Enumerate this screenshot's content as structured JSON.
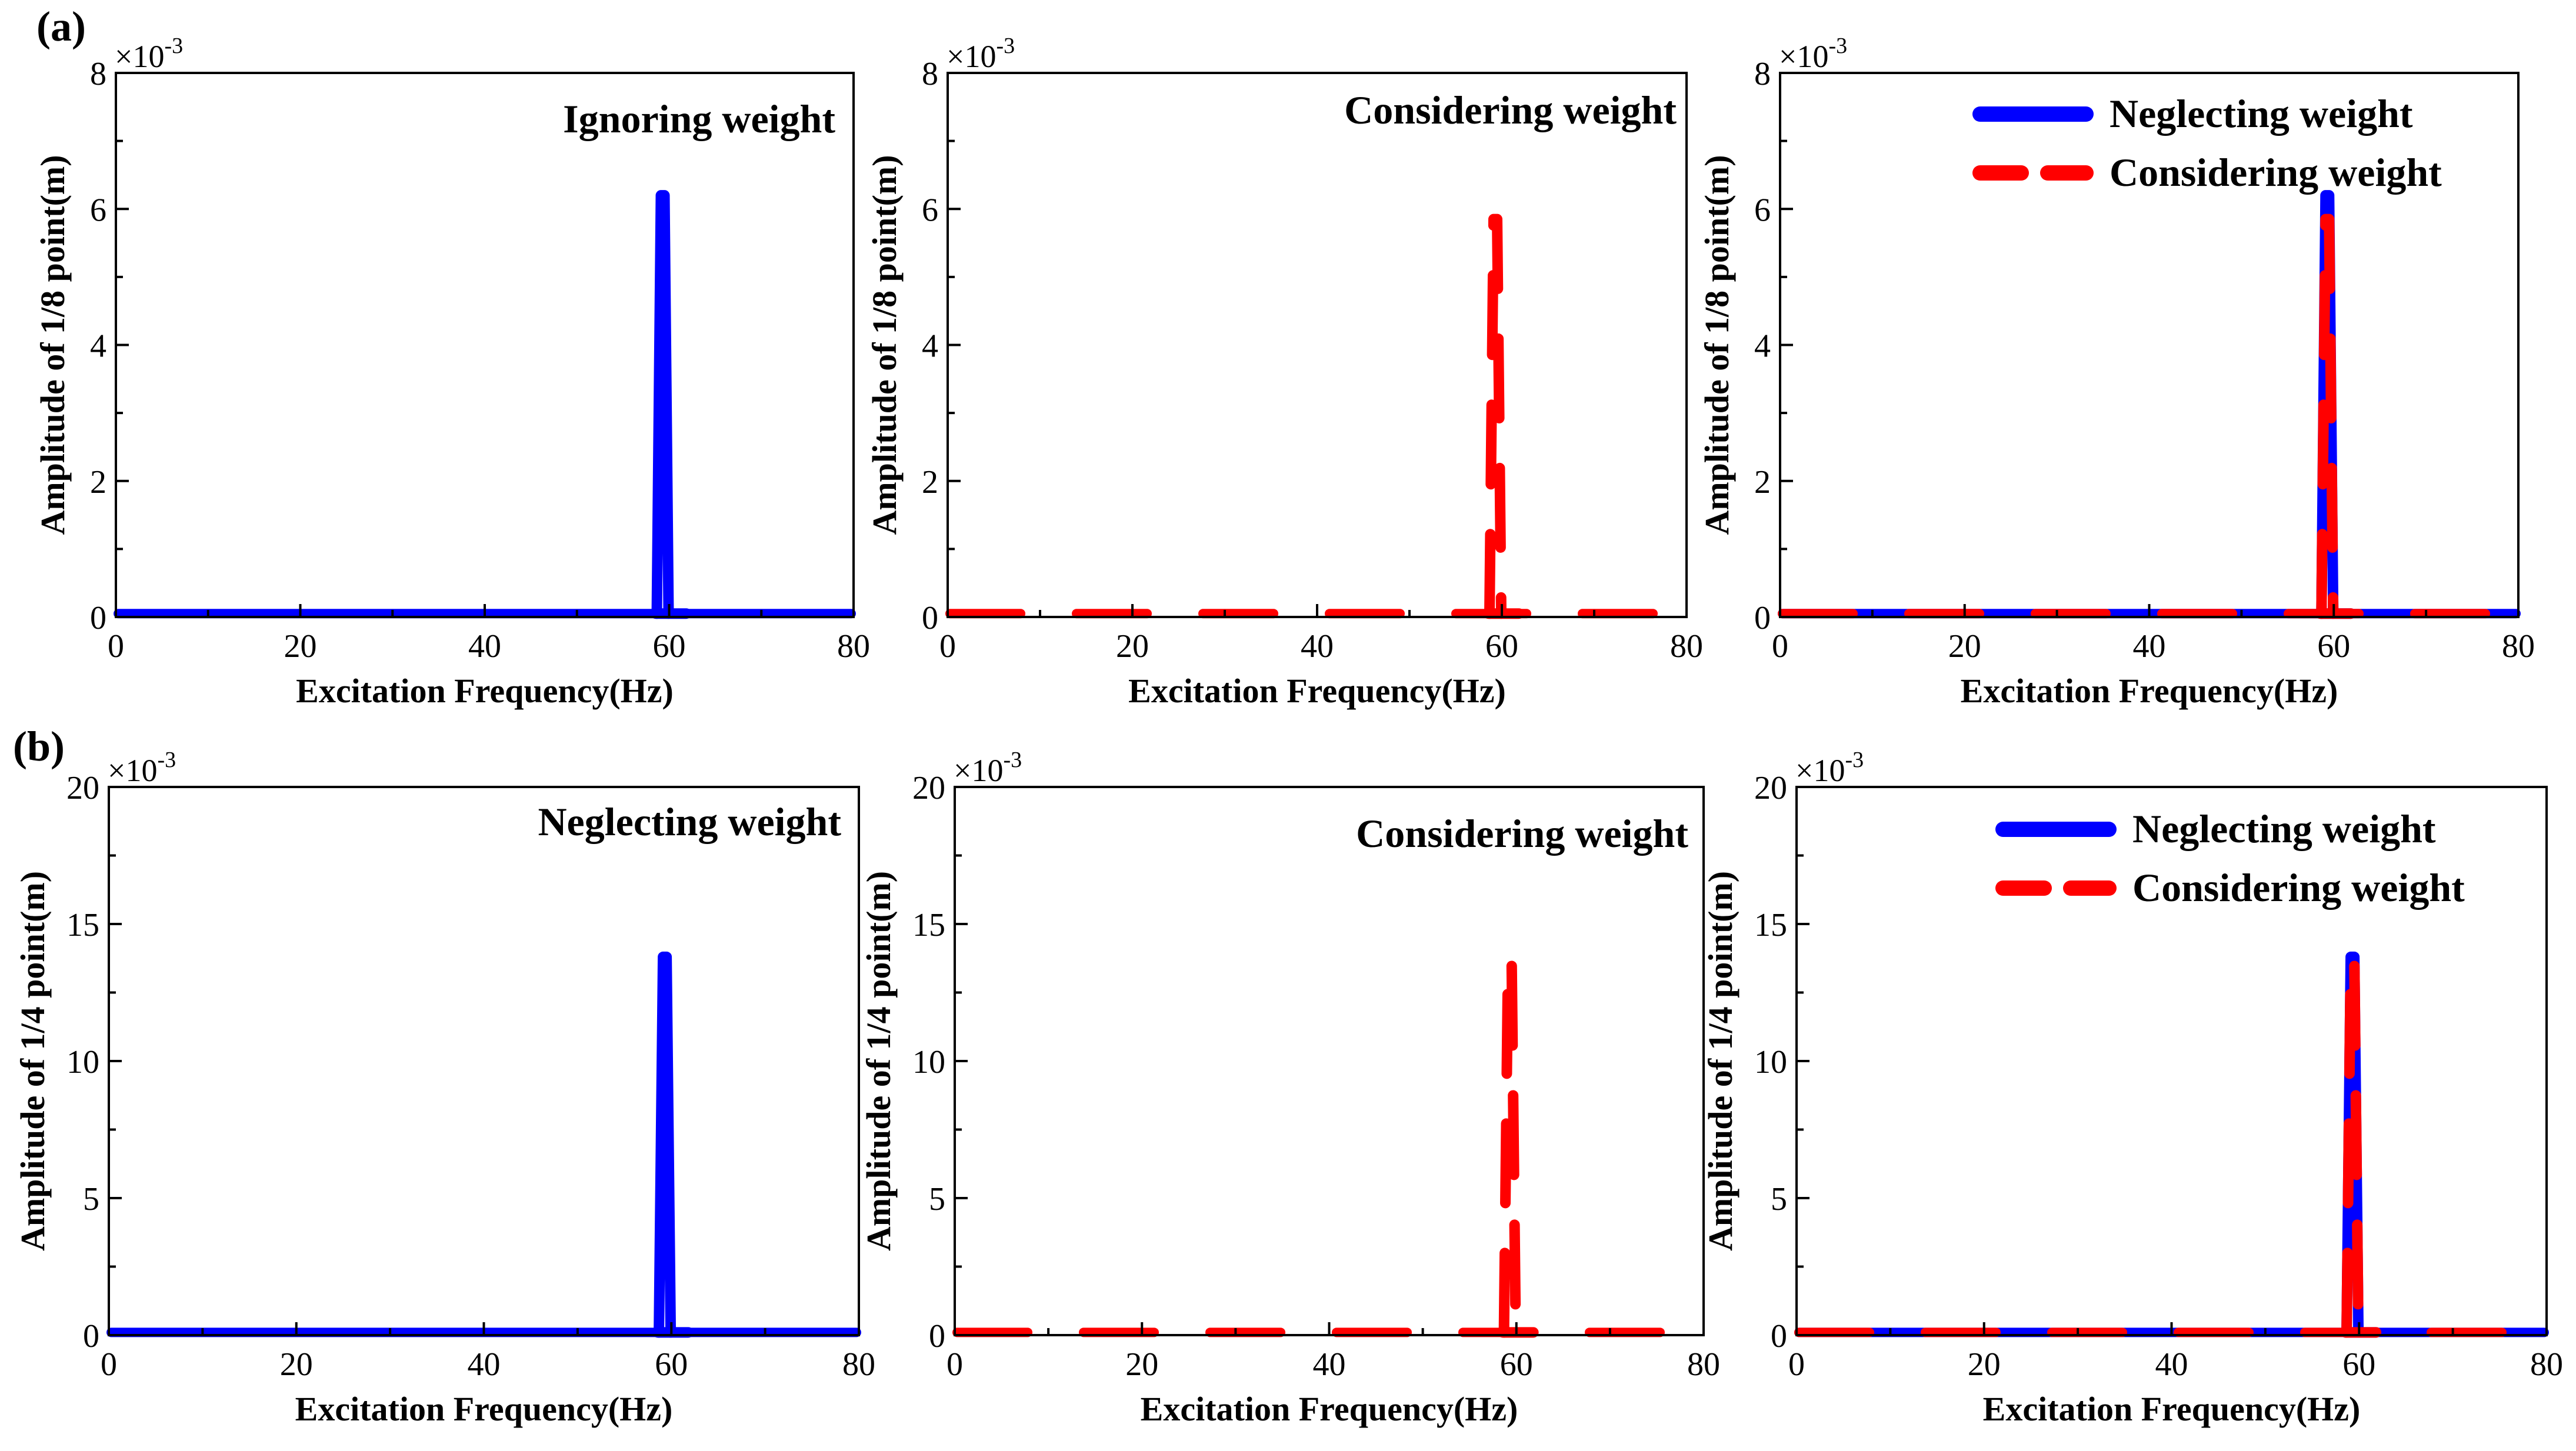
{
  "figure": {
    "row_labels": [
      "(a)",
      "(b)"
    ],
    "colors": {
      "neglecting": "#0000ff",
      "considering": "#ff0000",
      "axis": "#000000"
    }
  },
  "chart_data": [
    {
      "id": "a1",
      "row": 0,
      "col": 0,
      "type": "line",
      "title": "Ignoring weight",
      "xlabel": "Excitation Frequency(Hz)",
      "ylabel": "Amplitude of 1/8 point(m)",
      "y_multiplier": "×10",
      "y_exponent": "-3",
      "xlim": [
        0,
        80
      ],
      "ylim": [
        0,
        8
      ],
      "xticks": [
        "0",
        "20",
        "40",
        "60",
        "80"
      ],
      "yticks": [
        "0",
        "2",
        "4",
        "6",
        "8"
      ],
      "legend": null,
      "series": [
        {
          "name": "Ignoring weight",
          "color": "#0000ff",
          "style": "solid",
          "baseline": 0.05,
          "peak_x": 59.3,
          "peak_y": 6.2
        }
      ]
    },
    {
      "id": "a2",
      "row": 0,
      "col": 1,
      "type": "line",
      "title": "Considering weight",
      "xlabel": "Excitation Frequency(Hz)",
      "ylabel": "Amplitude of 1/8 point(m)",
      "y_multiplier": "×10",
      "y_exponent": "-3",
      "xlim": [
        0,
        80
      ],
      "ylim": [
        0,
        8
      ],
      "xticks": [
        "0",
        "20",
        "40",
        "60",
        "80"
      ],
      "yticks": [
        "0",
        "2",
        "4",
        "6",
        "8"
      ],
      "legend": null,
      "series": [
        {
          "name": "Considering weight",
          "color": "#ff0000",
          "style": "dashed",
          "baseline": 0.05,
          "peak_x": 59.3,
          "peak_y": 5.85
        }
      ]
    },
    {
      "id": "a3",
      "row": 0,
      "col": 2,
      "type": "line",
      "title": "",
      "xlabel": "Excitation Frequency(Hz)",
      "ylabel": "Amplitude of 1/8 point(m)",
      "y_multiplier": "×10",
      "y_exponent": "-3",
      "xlim": [
        0,
        80
      ],
      "ylim": [
        0,
        8
      ],
      "xticks": [
        "0",
        "20",
        "40",
        "60",
        "80"
      ],
      "yticks": [
        "0",
        "2",
        "4",
        "6",
        "8"
      ],
      "legend": [
        "Neglecting weight",
        "Considering weight"
      ],
      "series": [
        {
          "name": "Neglecting weight",
          "color": "#0000ff",
          "style": "solid",
          "baseline": 0.05,
          "peak_x": 59.3,
          "peak_y": 6.2
        },
        {
          "name": "Considering weight",
          "color": "#ff0000",
          "style": "dashed",
          "baseline": 0.05,
          "peak_x": 59.3,
          "peak_y": 5.85
        }
      ]
    },
    {
      "id": "b1",
      "row": 1,
      "col": 0,
      "type": "line",
      "title": "Neglecting weight",
      "xlabel": "Excitation Frequency(Hz)",
      "ylabel": "Amplitude of 1/4 point(m)",
      "y_multiplier": "×10",
      "y_exponent": "-3",
      "xlim": [
        0,
        80
      ],
      "ylim": [
        0,
        20
      ],
      "xticks": [
        "0",
        "20",
        "40",
        "60",
        "80"
      ],
      "yticks": [
        "0",
        "5",
        "10",
        "15",
        "20"
      ],
      "legend": null,
      "series": [
        {
          "name": "Neglecting weight",
          "color": "#0000ff",
          "style": "solid",
          "baseline": 0.1,
          "peak_x": 59.3,
          "peak_y": 13.8
        }
      ]
    },
    {
      "id": "b2",
      "row": 1,
      "col": 1,
      "type": "line",
      "title": "Considering weight",
      "xlabel": "Excitation Frequency(Hz)",
      "ylabel": "Amplitude of 1/4 point(m)",
      "y_multiplier": "×10",
      "y_exponent": "-3",
      "xlim": [
        0,
        80
      ],
      "ylim": [
        0,
        20
      ],
      "xticks": [
        "0",
        "20",
        "40",
        "60",
        "80"
      ],
      "yticks": [
        "0",
        "5",
        "10",
        "15",
        "20"
      ],
      "legend": null,
      "series": [
        {
          "name": "Considering weight",
          "color": "#ff0000",
          "style": "dashed",
          "baseline": 0.1,
          "peak_x": 59.3,
          "peak_y": 13.8
        }
      ]
    },
    {
      "id": "b3",
      "row": 1,
      "col": 2,
      "type": "line",
      "title": "",
      "xlabel": "Excitation Frequency(Hz)",
      "ylabel": "Amplitude of 1/4 point(m)",
      "y_multiplier": "×10",
      "y_exponent": "-3",
      "xlim": [
        0,
        80
      ],
      "ylim": [
        0,
        20
      ],
      "xticks": [
        "0",
        "20",
        "40",
        "60",
        "80"
      ],
      "yticks": [
        "0",
        "5",
        "10",
        "15",
        "20"
      ],
      "legend": [
        "Neglecting weight",
        "Considering weight"
      ],
      "series": [
        {
          "name": "Neglecting weight",
          "color": "#0000ff",
          "style": "solid",
          "baseline": 0.1,
          "peak_x": 59.3,
          "peak_y": 13.8
        },
        {
          "name": "Considering weight",
          "color": "#ff0000",
          "style": "dashed",
          "baseline": 0.1,
          "peak_x": 59.3,
          "peak_y": 13.8
        }
      ]
    }
  ]
}
